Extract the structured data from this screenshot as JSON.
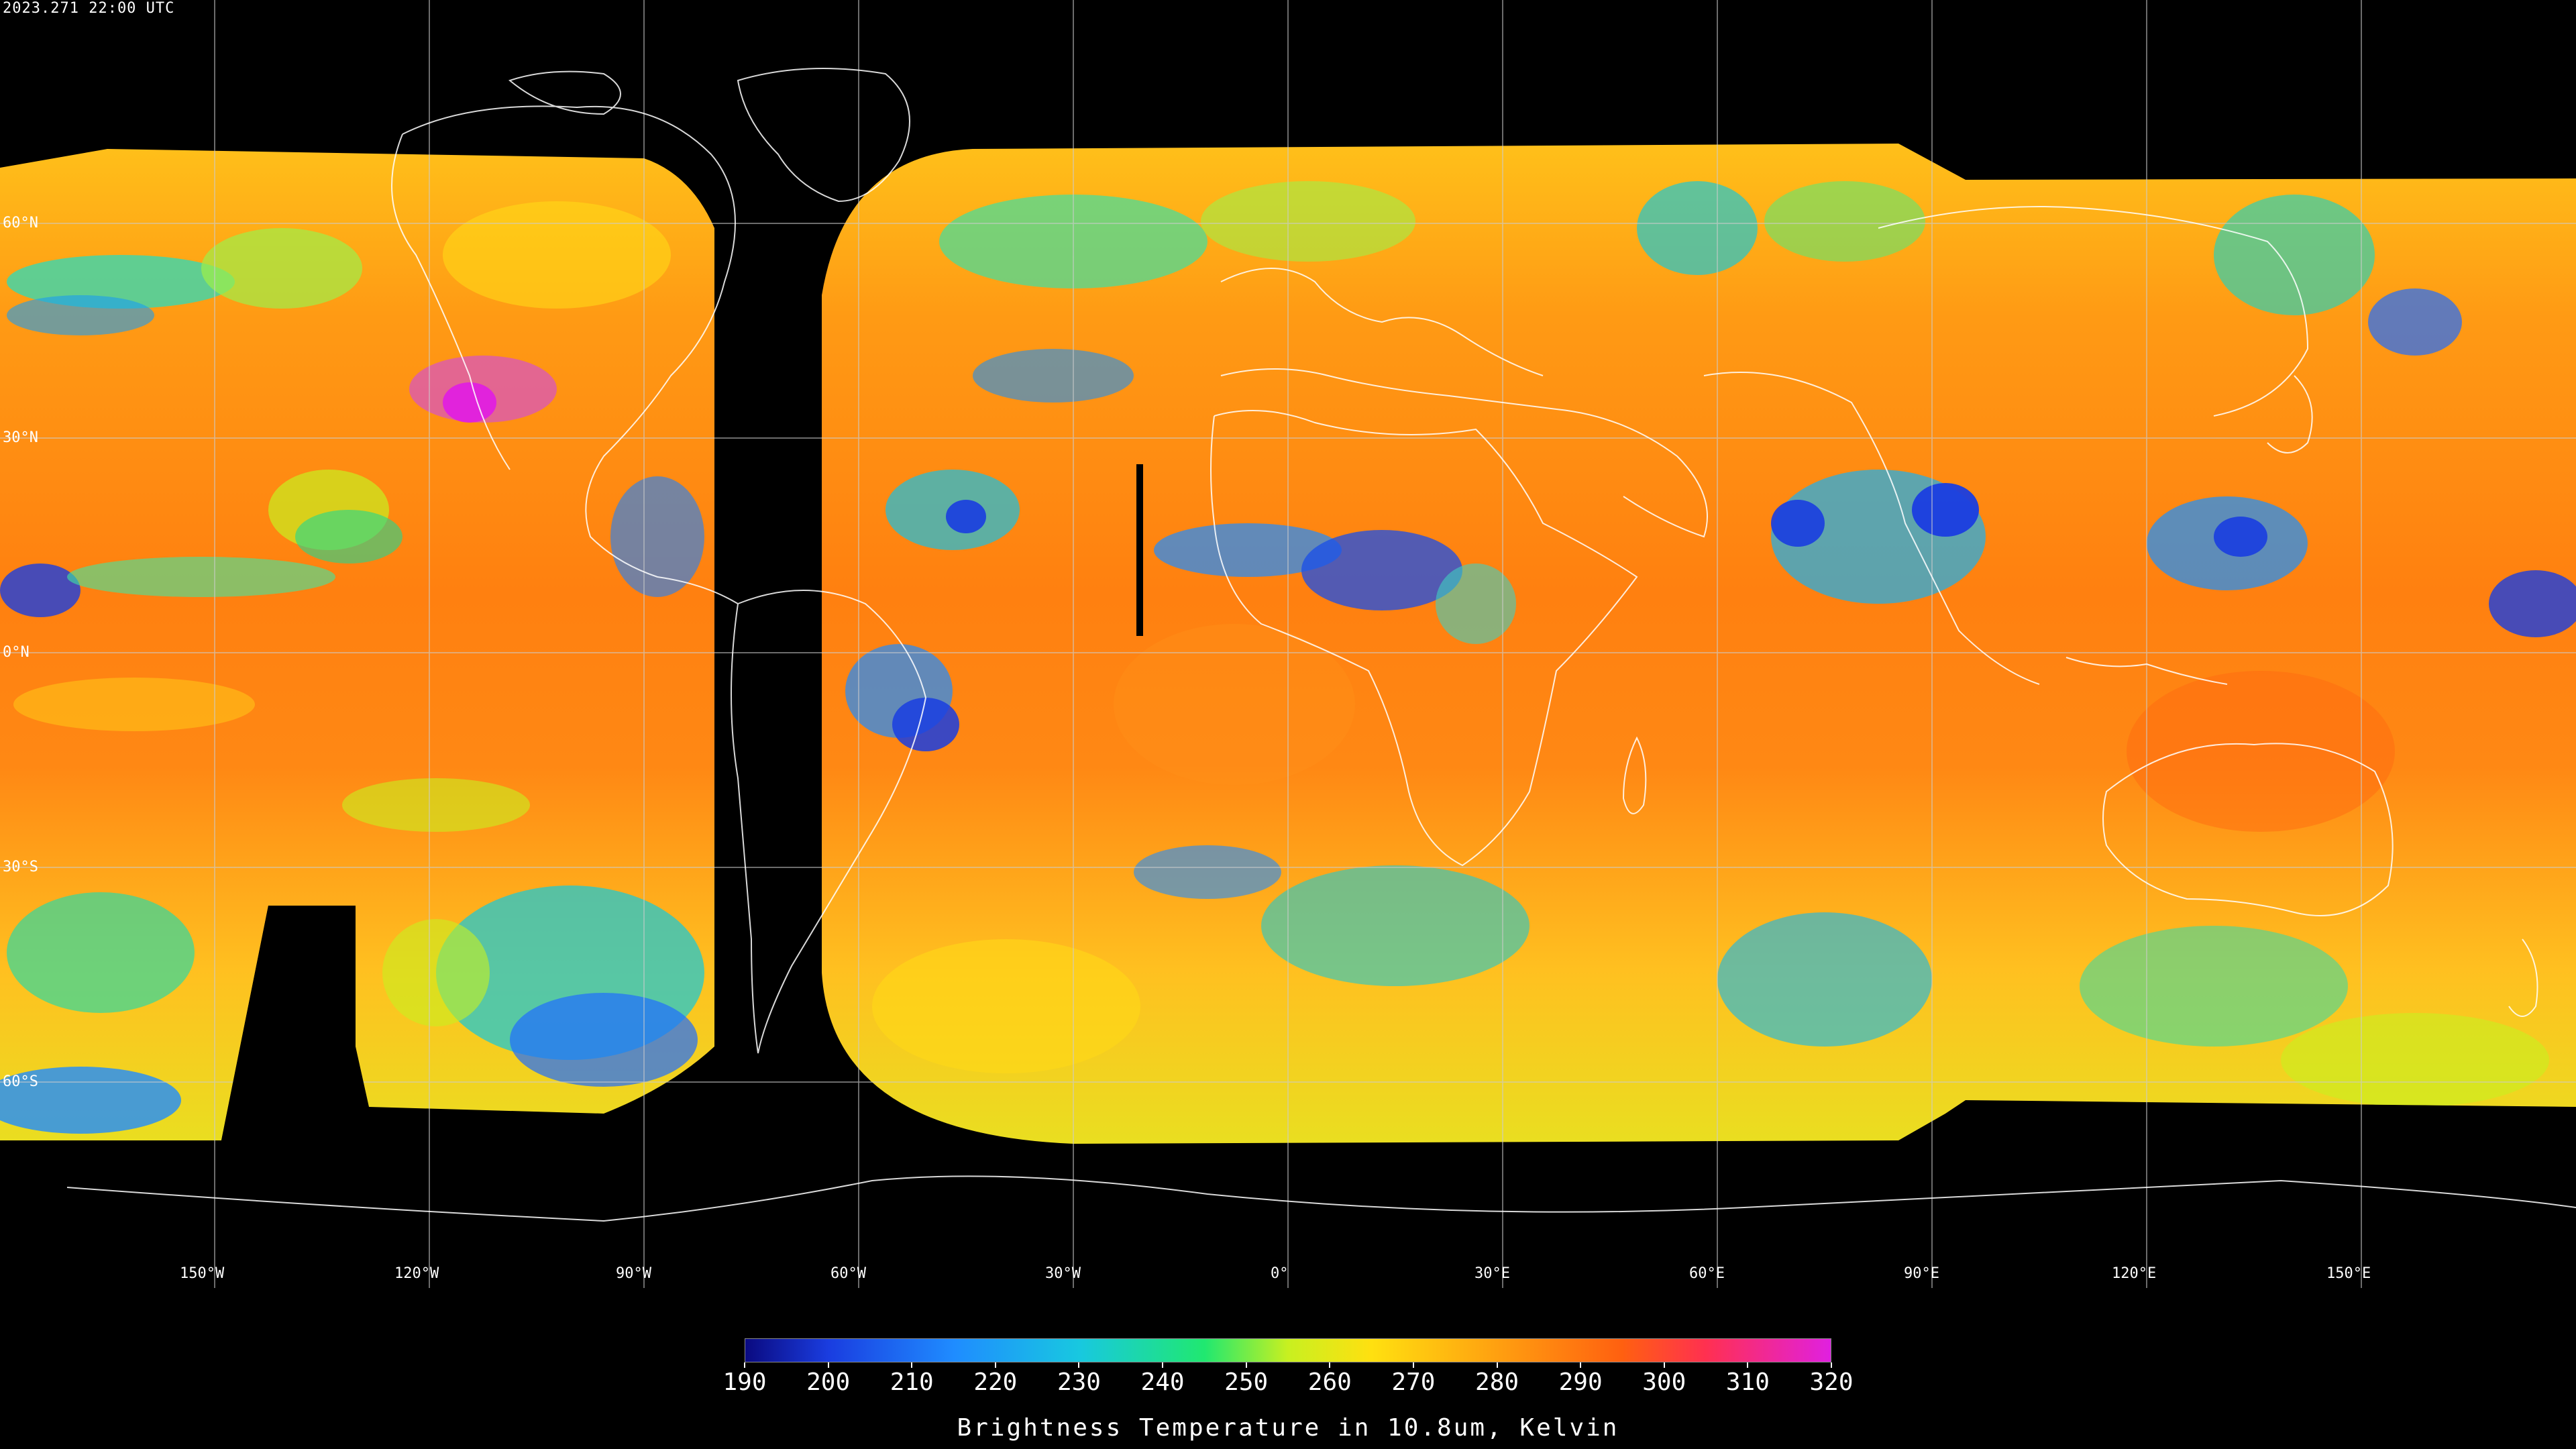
{
  "header": {
    "timestamp": "2023.271 22:00 UTC"
  },
  "map": {
    "longitude_labels": [
      "150°W",
      "120°W",
      "90°W",
      "60°W",
      "30°W",
      "0°",
      "30°E",
      "60°E",
      "90°E",
      "120°E",
      "150°E"
    ],
    "latitude_labels": [
      "60°N",
      "30°N",
      "0°N",
      "30°S",
      "60°S"
    ],
    "colors": {
      "background": "#000000",
      "coastline": "#ffffff",
      "grid": "#cccccc"
    }
  },
  "colorbar": {
    "title": "Brightness Temperature in 10.8um, Kelvin",
    "min": 190,
    "max": 320,
    "tick_labels": [
      "190",
      "200",
      "210",
      "220",
      "230",
      "240",
      "250",
      "260",
      "270",
      "280",
      "290",
      "300",
      "310",
      "320"
    ],
    "stops": [
      {
        "value": 190,
        "color": "#0a0a80"
      },
      {
        "value": 200,
        "color": "#1a3de0"
      },
      {
        "value": 215,
        "color": "#1f8cff"
      },
      {
        "value": 230,
        "color": "#18c8e0"
      },
      {
        "value": 245,
        "color": "#20e870"
      },
      {
        "value": 255,
        "color": "#c8f020"
      },
      {
        "value": 265,
        "color": "#ffe010"
      },
      {
        "value": 280,
        "color": "#ffa010"
      },
      {
        "value": 295,
        "color": "#ff6010"
      },
      {
        "value": 305,
        "color": "#ff3050"
      },
      {
        "value": 320,
        "color": "#e020e0"
      }
    ]
  }
}
